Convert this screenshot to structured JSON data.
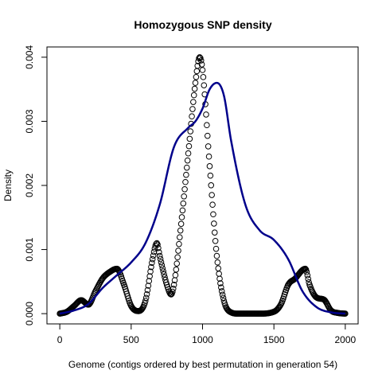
{
  "chart_data": {
    "type": "line",
    "title": "Homozygous SNP density",
    "xlabel": "Genome (contigs ordered by best permutation in generation 54)",
    "ylabel": "Density",
    "xlim": [
      -90,
      2090
    ],
    "ylim": [
      -0.00016,
      0.00416
    ],
    "x_ticks": [
      0,
      500,
      1000,
      1500,
      2000
    ],
    "x_tick_labels": [
      "0",
      "500",
      "1000",
      "1500",
      "2000"
    ],
    "y_ticks": [
      0,
      0.001,
      0.002,
      0.003,
      0.004
    ],
    "y_tick_labels": [
      "0.000",
      "0.001",
      "0.002",
      "0.003",
      "0.004"
    ],
    "grid": false,
    "series": [
      {
        "style": "points",
        "marker": "open-circle",
        "color": "#000000",
        "x": [
          0,
          50,
          100,
          150,
          200,
          250,
          300,
          350,
          400,
          450,
          500,
          550,
          600,
          650,
          680,
          700,
          750,
          780,
          800,
          850,
          900,
          950,
          980,
          1000,
          1050,
          1100,
          1150,
          1200,
          1250,
          1300,
          1400,
          1500,
          1550,
          1600,
          1650,
          1700,
          1720,
          1750,
          1800,
          1850,
          1900,
          1950,
          2000
        ],
        "y": [
          0.0,
          3e-05,
          0.00012,
          0.00021,
          0.00014,
          0.00035,
          0.00055,
          0.00065,
          0.0007,
          0.00045,
          0.00012,
          4e-05,
          0.0002,
          0.00085,
          0.0011,
          0.0009,
          0.00045,
          0.0003,
          0.00045,
          0.0014,
          0.0025,
          0.0036,
          0.004,
          0.0038,
          0.0023,
          0.0009,
          0.0002,
          2e-05,
          0.0,
          0.0,
          0.0,
          3e-05,
          0.00015,
          0.00045,
          0.00055,
          0.00068,
          0.0007,
          0.00045,
          0.00025,
          0.00022,
          5e-05,
          1e-05,
          0.0
        ]
      },
      {
        "style": "line",
        "color": "#00008B",
        "x": [
          0,
          100,
          200,
          300,
          400,
          500,
          600,
          700,
          800,
          900,
          950,
          1000,
          1050,
          1100,
          1150,
          1200,
          1300,
          1400,
          1500,
          1600,
          1700,
          1800,
          1900,
          2000
        ],
        "y": [
          0.0,
          5e-05,
          0.00015,
          0.0004,
          0.0006,
          0.0008,
          0.0011,
          0.0017,
          0.0026,
          0.0029,
          0.003,
          0.0032,
          0.0035,
          0.0036,
          0.0034,
          0.0027,
          0.0017,
          0.0013,
          0.00115,
          0.00085,
          0.00035,
          0.0001,
          2e-05,
          0.0
        ]
      }
    ]
  }
}
